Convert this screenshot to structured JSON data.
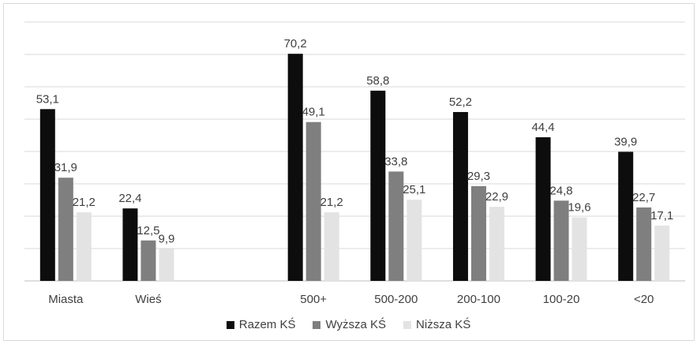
{
  "chart_data": {
    "type": "bar",
    "categories": [
      "Miasta",
      "Wieś",
      "",
      "500+",
      "500-200",
      "200-100",
      "100-20",
      "<20"
    ],
    "series": [
      {
        "name": "Razem KŚ",
        "color": "#0d0d0d",
        "values": [
          53.1,
          22.4,
          null,
          70.2,
          58.8,
          52.2,
          44.4,
          39.9
        ],
        "labels": [
          "53,1",
          "22,4",
          "",
          "70,2",
          "58,8",
          "52,2",
          "44,4",
          "39,9"
        ]
      },
      {
        "name": "Wyższa KŚ",
        "color": "#7f7f7f",
        "values": [
          31.9,
          12.5,
          null,
          49.1,
          33.8,
          29.3,
          24.8,
          22.7
        ],
        "labels": [
          "31,9",
          "12,5",
          "",
          "49,1",
          "33,8",
          "29,3",
          "24,8",
          "22,7"
        ]
      },
      {
        "name": "Niższa KŚ",
        "color": "#e3e3e3",
        "values": [
          21.2,
          9.9,
          null,
          21.2,
          25.1,
          22.9,
          19.6,
          17.1
        ],
        "labels": [
          "21,2",
          "9,9",
          "",
          "21,2",
          "25,1",
          "22,9",
          "19,6",
          "17,1"
        ]
      }
    ],
    "ylim": [
      0,
      80
    ],
    "grid": true,
    "legend_position": "bottom"
  }
}
